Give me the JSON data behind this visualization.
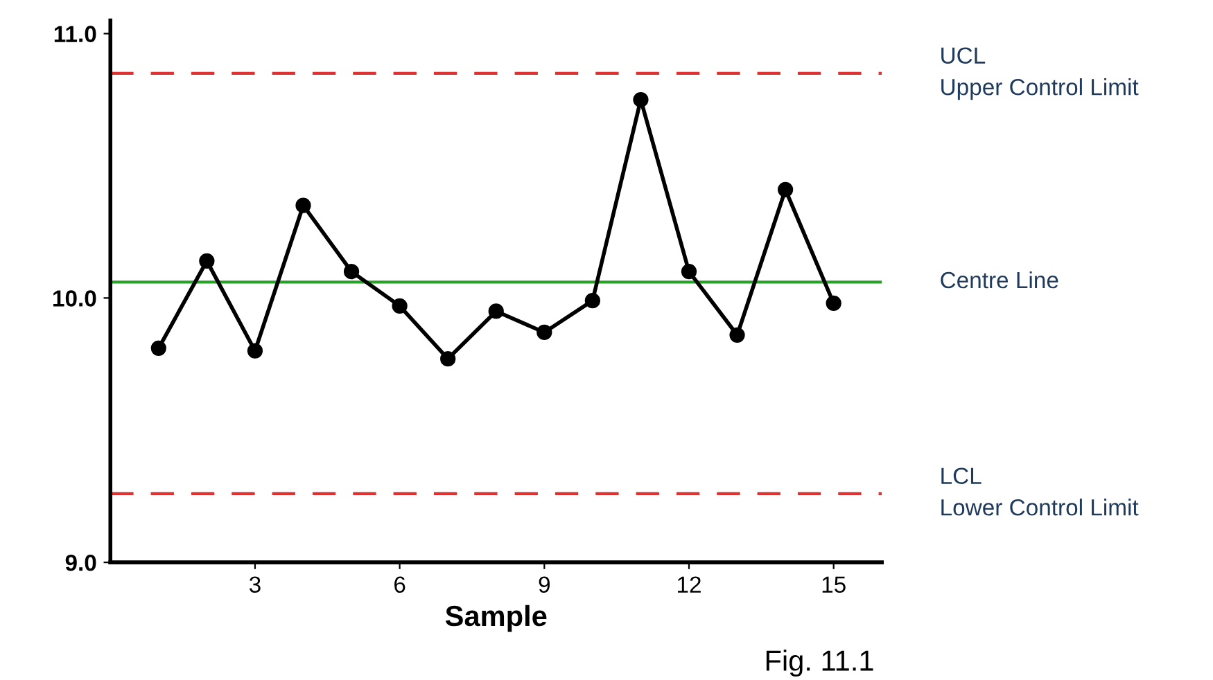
{
  "chart_data": {
    "type": "line",
    "xlabel": "Sample",
    "x": [
      1,
      2,
      3,
      4,
      5,
      6,
      7,
      8,
      9,
      10,
      11,
      12,
      13,
      14,
      15
    ],
    "series": [
      {
        "color": "#000000",
        "values": [
          9.81,
          10.14,
          9.8,
          10.35,
          10.1,
          9.97,
          9.77,
          9.95,
          9.87,
          9.99,
          10.75,
          10.1,
          9.86,
          10.41,
          9.98
        ]
      }
    ],
    "marker": "circle",
    "line_style": "solid",
    "grid": false,
    "legend": false,
    "xlim": [
      0,
      16
    ],
    "xticks": [
      3,
      6,
      9,
      12,
      15
    ],
    "ylim": [
      9.0,
      11.05
    ],
    "yticks": [
      {
        "value": 9.0,
        "label": "9.0"
      },
      {
        "value": 10.0,
        "label": "10.0"
      },
      {
        "value": 11.0,
        "label": "11.0"
      }
    ],
    "ref_lines": [
      {
        "axis": "y",
        "value": 10.85,
        "label": "UCL\nUpper Control Limit",
        "color": "#e03030",
        "line_style": "dashed"
      },
      {
        "axis": "y",
        "value": 10.06,
        "label": "Centre Line",
        "color": "#2ca02c",
        "line_style": "solid"
      },
      {
        "axis": "y",
        "value": 9.26,
        "label": "LCL\nLower Control Limit",
        "color": "#e03030",
        "line_style": "dashed"
      }
    ],
    "annotations": [
      "Fig. 11.1"
    ]
  }
}
